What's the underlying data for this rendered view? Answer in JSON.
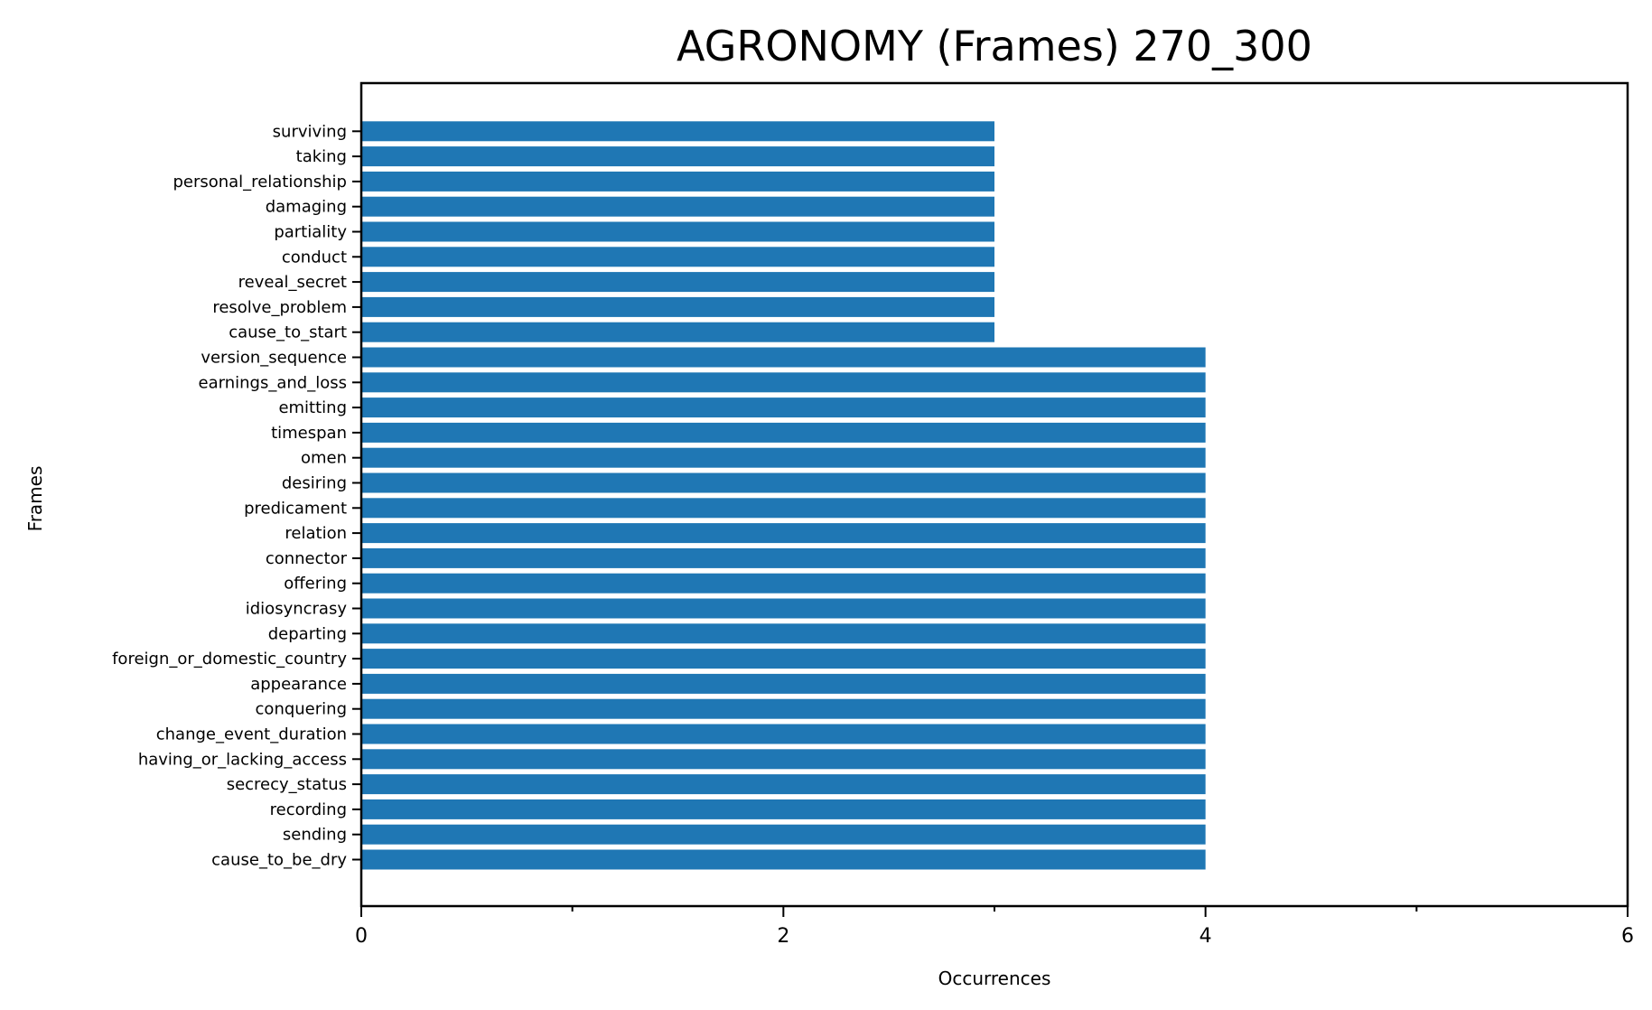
{
  "chart_data": {
    "type": "bar",
    "orientation": "horizontal",
    "title": "AGRONOMY (Frames) 270_300",
    "xlabel": "Occurrences",
    "ylabel": "Frames",
    "xlim": [
      0,
      6
    ],
    "xticks": [
      0,
      2,
      4,
      6
    ],
    "xtick_labels": [
      "0",
      "2",
      "4",
      "6"
    ],
    "grid": false,
    "bar_color": "#1f77b4",
    "categories": [
      "cause_to_be_dry",
      "sending",
      "recording",
      "secrecy_status",
      "having_or_lacking_access",
      "change_event_duration",
      "conquering",
      "appearance",
      "foreign_or_domestic_country",
      "departing",
      "idiosyncrasy",
      "offering",
      "connector",
      "relation",
      "predicament",
      "desiring",
      "omen",
      "timespan",
      "emitting",
      "earnings_and_loss",
      "version_sequence",
      "cause_to_start",
      "resolve_problem",
      "reveal_secret",
      "conduct",
      "partiality",
      "damaging",
      "personal_relationship",
      "taking",
      "surviving"
    ],
    "values": [
      4,
      4,
      4,
      4,
      4,
      4,
      4,
      4,
      4,
      4,
      4,
      4,
      4,
      4,
      4,
      4,
      4,
      4,
      4,
      4,
      4,
      3,
      3,
      3,
      3,
      3,
      3,
      3,
      3,
      3
    ]
  }
}
